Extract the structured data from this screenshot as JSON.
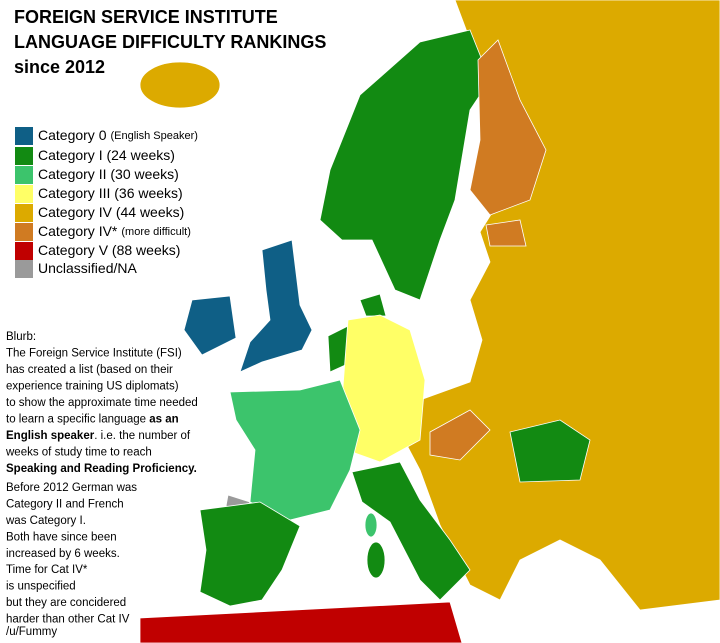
{
  "title": [
    "FOREIGN SERVICE INSTITUTE",
    "LANGUAGE DIFFICULTY RANKINGS",
    "since 2012"
  ],
  "legend": [
    {
      "label": "Category 0",
      "note": "(English Speaker)",
      "color": "#0f5f86"
    },
    {
      "label": "Category I   (24 weeks)",
      "color": "#128a12"
    },
    {
      "label": "Category II  (30 weeks)",
      "color": "#3cc46c"
    },
    {
      "label": "Category III (36 weeks)",
      "color": "#ffff66"
    },
    {
      "label": "Category IV (44 weeks)",
      "color": "#dcaa00"
    },
    {
      "label": "Category IV*",
      "note": "(more difficult)",
      "color": "#d07b22"
    },
    {
      "label": "Category V (88 weeks)",
      "color": "#c00000"
    },
    {
      "label": "Unclassified/NA",
      "color": "#9a9a9a"
    }
  ],
  "blurb": [
    [
      [
        {
          "text": "Blurb:"
        }
      ],
      [
        {
          "text": "The Foreign Service Institute (FSI)"
        }
      ],
      [
        {
          "text": "has created a list (based on their"
        }
      ],
      [
        {
          "text": "experience training US diplomats)"
        }
      ],
      [
        {
          "text": "to show the approximate time needed"
        }
      ],
      [
        {
          "text": "to learn a specific language "
        },
        {
          "text": "as an",
          "bold": true
        }
      ],
      [
        {
          "text": "English speaker",
          "bold": true
        },
        {
          "text": ". i.e. the number of"
        }
      ],
      [
        {
          "text": "weeks of study time to reach"
        }
      ],
      [
        {
          "text": "Speaking and Reading Proficiency.",
          "bold": true
        }
      ]
    ],
    [
      [
        {
          "text": "Before 2012 German was"
        }
      ],
      [
        {
          "text": "Category II and French"
        }
      ],
      [
        {
          "text": "was Category I."
        }
      ],
      [
        {
          "text": "Both have since been"
        }
      ],
      [
        {
          "text": "increased by 6 weeks."
        }
      ]
    ],
    [
      [
        {
          "text": "Time for Cat IV*"
        }
      ],
      [
        {
          "text": "is unspecified"
        }
      ],
      [
        {
          "text": "but they are concidered"
        }
      ],
      [
        {
          "text": "harder than other Cat IV"
        }
      ]
    ]
  ],
  "credit": "/u/Fummy"
}
